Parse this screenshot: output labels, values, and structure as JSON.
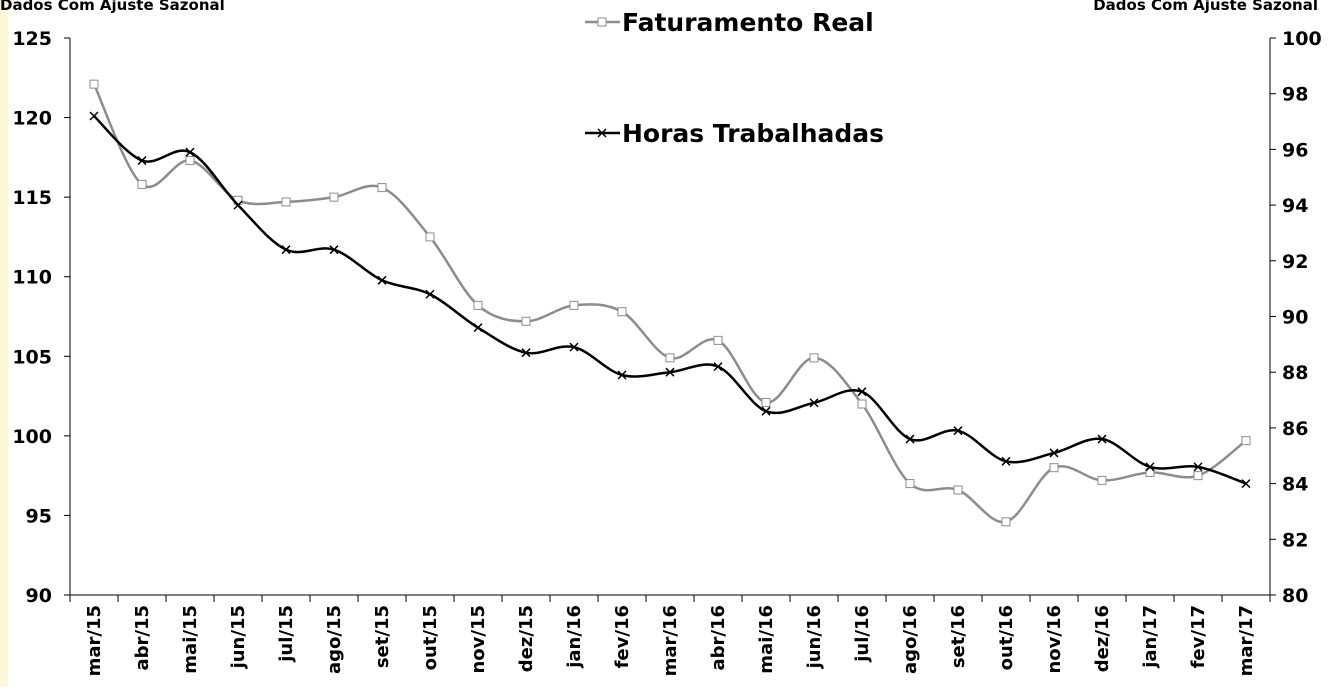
{
  "chart_data": {
    "type": "line",
    "left_axis_label": "Dados Com Ajuste Sazonal",
    "right_axis_label": "Dados Com Ajuste Sazonal",
    "categories": [
      "mar/15",
      "abr/15",
      "mai/15",
      "jun/15",
      "jul/15",
      "ago/15",
      "set/15",
      "out/15",
      "nov/15",
      "dez/15",
      "jan/16",
      "fev/16",
      "mar/16",
      "abr/16",
      "mai/16",
      "jun/16",
      "jul/16",
      "ago/16",
      "set/16",
      "out/16",
      "nov/16",
      "dez/16",
      "jan/17",
      "fev/17",
      "mar/17"
    ],
    "series": [
      {
        "name": "Faturamento Real",
        "color": "#8c8c8c",
        "marker": "square",
        "values": [
          122.1,
          115.8,
          117.3,
          114.8,
          114.7,
          115.0,
          115.6,
          112.5,
          108.2,
          107.2,
          108.2,
          107.8,
          104.9,
          106.0,
          102.1,
          104.9,
          102.0,
          97.0,
          96.6,
          94.6,
          98.0,
          97.2,
          97.7,
          97.5,
          99.7
        ]
      },
      {
        "name": "Horas Trabalhadas",
        "color": "#000000",
        "marker": "x",
        "axis": "y2",
        "values": [
          97.2,
          95.6,
          95.9,
          94.0,
          92.4,
          92.4,
          91.3,
          90.8,
          89.6,
          88.7,
          88.9,
          87.9,
          88.0,
          88.2,
          86.6,
          86.9,
          87.3,
          85.6,
          85.9,
          84.8,
          85.1,
          85.6,
          84.6,
          84.6,
          84.0
        ]
      }
    ],
    "ylim": [
      90,
      125
    ],
    "yticks": [
      90,
      95,
      100,
      105,
      110,
      115,
      120,
      125
    ],
    "y2lim": [
      80,
      100
    ],
    "y2ticks": [
      80,
      82,
      84,
      86,
      88,
      90,
      92,
      94,
      96,
      98,
      100
    ],
    "grid": false
  }
}
